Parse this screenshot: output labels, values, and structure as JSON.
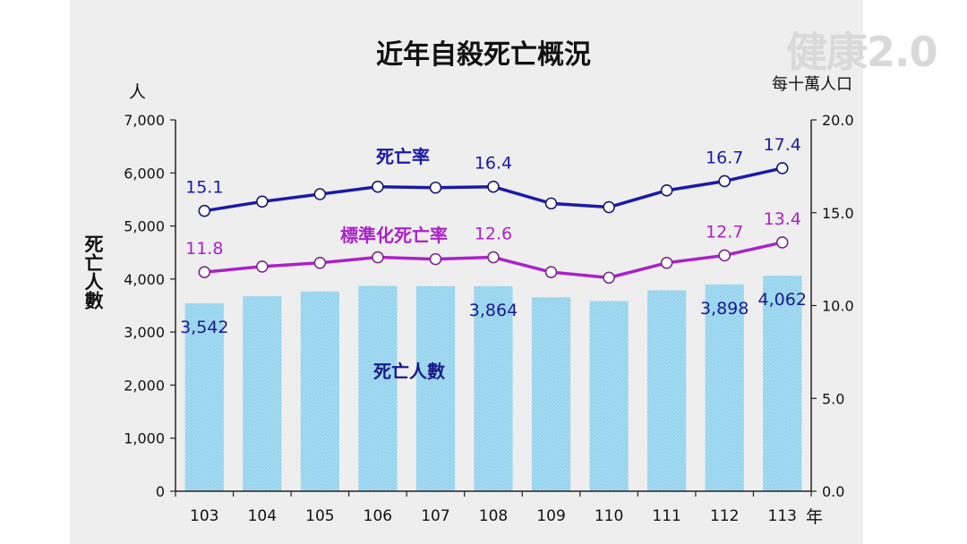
{
  "chart_data": {
    "type": "bar+line",
    "title": "近年自殺死亡概況",
    "categories": [
      "103",
      "104",
      "105",
      "106",
      "107",
      "108",
      "109",
      "110",
      "111",
      "112",
      "113"
    ],
    "x_unit": "年",
    "y_left": {
      "unit": "人",
      "label": "死亡人數",
      "range": [
        0,
        7000
      ],
      "ticks": [
        "0",
        "1,000",
        "2,000",
        "3,000",
        "4,000",
        "5,000",
        "6,000",
        "7,000"
      ]
    },
    "y_right": {
      "unit": "每十萬人口",
      "range": [
        0,
        20
      ],
      "ticks": [
        "0.0",
        "5.0",
        "10.0",
        "15.0",
        "20.0"
      ]
    },
    "bars": {
      "name": "死亡人數",
      "color": "#9ed8f0",
      "values": [
        3542,
        3675,
        3765,
        3871,
        3865,
        3864,
        3656,
        3585,
        3787,
        3898,
        4062
      ],
      "labels": [
        "3,542",
        "",
        "",
        "",
        "",
        "3,864",
        "",
        "",
        "",
        "3,898",
        "4,062"
      ]
    },
    "series": [
      {
        "name": "死亡率",
        "axis": "right",
        "color": "#1a1aa8",
        "values": [
          15.1,
          15.6,
          16.0,
          16.4,
          16.35,
          16.4,
          15.5,
          15.3,
          16.2,
          16.7,
          17.4
        ],
        "labels": [
          "15.1",
          "",
          "",
          "",
          "",
          "16.4",
          "",
          "",
          "",
          "16.7",
          "17.4"
        ]
      },
      {
        "name": "標準化死亡率",
        "axis": "right",
        "color": "#aa22c8",
        "values": [
          11.8,
          12.1,
          12.3,
          12.6,
          12.5,
          12.6,
          11.8,
          11.5,
          12.3,
          12.7,
          13.4
        ],
        "labels": [
          "11.8",
          "",
          "",
          "",
          "",
          "12.6",
          "",
          "",
          "",
          "12.7",
          "13.4"
        ]
      }
    ],
    "grid": false,
    "legend": "inline labels"
  },
  "watermark": "健康2.0"
}
